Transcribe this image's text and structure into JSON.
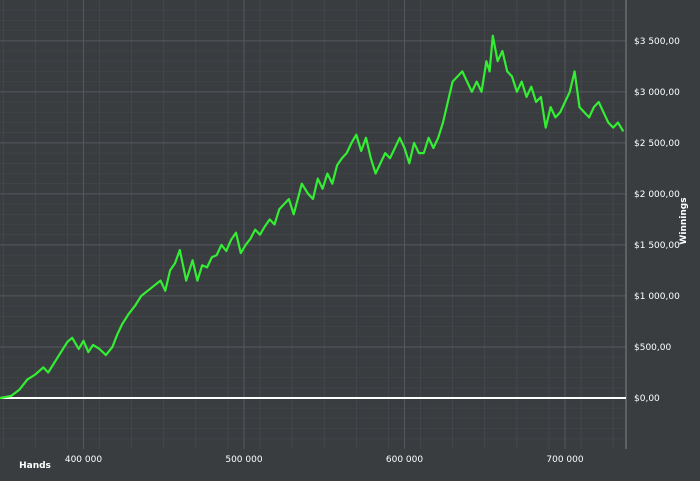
{
  "chart_data": {
    "type": "line",
    "xlabel": "Hands",
    "ylabel": "Winnings",
    "xlim": [
      348000,
      738000
    ],
    "ylim": [
      -500,
      3900
    ],
    "x_ticks": [
      400000,
      500000,
      600000,
      700000
    ],
    "x_tick_labels": [
      "400 000",
      "500 000",
      "600 000",
      "700 000"
    ],
    "y_ticks": [
      0,
      500,
      1000,
      1500,
      2000,
      2500,
      3000,
      3500
    ],
    "y_tick_labels": [
      "$0,00",
      "$500,00",
      "$1 000,00",
      "$1 500,00",
      "$2 000,00",
      "$2 500,00",
      "$3 000,00",
      "$3 500,00"
    ],
    "grid": true,
    "y_axis_side": "right",
    "colors": {
      "background": "#3a3d40",
      "series": "#33ee33",
      "zero_line": "#ffffff",
      "grid": "#55595e"
    },
    "series": [
      {
        "x": [
          348000,
          355000,
          360000,
          365000,
          370000,
          375000,
          378000,
          382000,
          386000,
          390000,
          393000,
          397000,
          400000,
          403000,
          406000,
          410000,
          414000,
          418000,
          421000,
          424000,
          428000,
          432000,
          436000,
          440000,
          444000,
          448000,
          451000,
          454000,
          457000,
          460000,
          462000,
          464000,
          466000,
          468000,
          471000,
          474000,
          477000,
          480000,
          483000,
          486000,
          489000,
          492000,
          495000,
          498000,
          501000,
          504000,
          507000,
          510000,
          513000,
          516000,
          519000,
          522000,
          525000,
          528000,
          531000,
          534000,
          536000,
          538000,
          540000,
          543000,
          546000,
          549000,
          552000,
          555000,
          558000,
          561000,
          564000,
          567000,
          570000,
          573000,
          576000,
          579000,
          582000,
          585000,
          588000,
          591000,
          594000,
          597000,
          600000,
          603000,
          606000,
          609000,
          612000,
          615000,
          618000,
          621000,
          624000,
          627000,
          630000,
          633000,
          636000,
          639000,
          642000,
          645000,
          648000,
          651000,
          653000,
          655000,
          658000,
          661000,
          664000,
          667000,
          670000,
          673000,
          676000,
          679000,
          682000,
          685000,
          688000,
          691000,
          694000,
          697000,
          700000,
          703000,
          706000,
          709000,
          712000,
          715000,
          718000,
          721000,
          724000,
          727000,
          730000,
          733000,
          736000
        ],
        "y": [
          0,
          20,
          80,
          180,
          230,
          300,
          250,
          350,
          450,
          550,
          590,
          480,
          560,
          450,
          520,
          480,
          420,
          500,
          620,
          720,
          820,
          900,
          1000,
          1050,
          1100,
          1150,
          1050,
          1250,
          1320,
          1450,
          1300,
          1150,
          1250,
          1350,
          1150,
          1300,
          1280,
          1380,
          1400,
          1500,
          1440,
          1550,
          1620,
          1420,
          1500,
          1560,
          1650,
          1600,
          1680,
          1750,
          1700,
          1850,
          1900,
          1950,
          1800,
          1980,
          2100,
          2050,
          2000,
          1950,
          2150,
          2050,
          2200,
          2100,
          2280,
          2350,
          2400,
          2500,
          2580,
          2420,
          2550,
          2350,
          2200,
          2300,
          2400,
          2350,
          2450,
          2550,
          2450,
          2300,
          2500,
          2400,
          2400,
          2550,
          2450,
          2550,
          2700,
          2900,
          3100,
          3150,
          3200,
          3100,
          3000,
          3100,
          3000,
          3300,
          3200,
          3550,
          3300,
          3400,
          3200,
          3150,
          3000,
          3100,
          2950,
          3050,
          2900,
          2950,
          2650,
          2850,
          2750,
          2800,
          2900,
          3000,
          3200,
          2850,
          2800,
          2750,
          2850,
          2900,
          2800,
          2700,
          2650,
          2700,
          2620
        ]
      }
    ]
  }
}
